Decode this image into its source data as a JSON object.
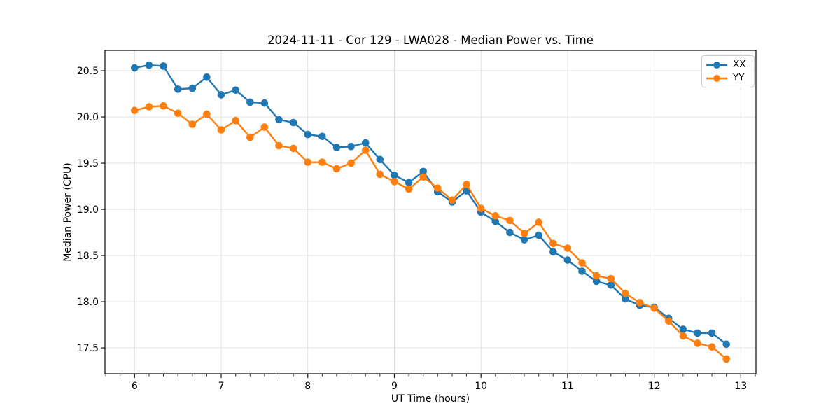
{
  "chart_data": {
    "type": "line",
    "title": "2024-11-11 - Cor 129 - LWA028 - Median Power vs. Time",
    "xlabel": "UT Time (hours)",
    "ylabel": "Median Power (CPU)",
    "xlim": [
      5.658,
      13.175
    ],
    "ylim": [
      17.22,
      20.72
    ],
    "xticks": [
      6,
      7,
      8,
      9,
      10,
      11,
      12,
      13
    ],
    "yticks": [
      17.5,
      18.0,
      18.5,
      19.0,
      19.5,
      20.0,
      20.5
    ],
    "x_minor_tick_step": 0.166667,
    "grid": true,
    "grid_color": "#e0e0e0",
    "spine_color": "#1a1a1a",
    "legend_position": "upper right",
    "x": [
      6.0,
      6.1667,
      6.3333,
      6.5,
      6.6667,
      6.8333,
      7.0,
      7.1667,
      7.3333,
      7.5,
      7.6667,
      7.8333,
      8.0,
      8.1667,
      8.3333,
      8.5,
      8.6667,
      8.8333,
      9.0,
      9.1667,
      9.3333,
      9.5,
      9.6667,
      9.8333,
      10.0,
      10.1667,
      10.3333,
      10.5,
      10.6667,
      10.8333,
      11.0,
      11.1667,
      11.3333,
      11.5,
      11.6667,
      11.8333,
      12.0,
      12.1667,
      12.3333,
      12.5,
      12.6667,
      12.8333
    ],
    "series": [
      {
        "name": "XX",
        "color": "#1f77b4",
        "values": [
          20.53,
          20.56,
          20.55,
          20.3,
          20.31,
          20.43,
          20.24,
          20.29,
          20.16,
          20.15,
          19.97,
          19.94,
          19.81,
          19.79,
          19.67,
          19.68,
          19.72,
          19.54,
          19.37,
          19.29,
          19.41,
          19.19,
          19.08,
          19.2,
          18.97,
          18.87,
          18.75,
          18.67,
          18.72,
          18.54,
          18.45,
          18.33,
          18.22,
          18.18,
          18.03,
          17.96,
          17.94,
          17.82,
          17.7,
          17.66,
          17.66,
          17.54
        ]
      },
      {
        "name": "YY",
        "color": "#ff7f0e",
        "values": [
          20.07,
          20.11,
          20.12,
          20.04,
          19.92,
          20.03,
          19.86,
          19.96,
          19.78,
          19.89,
          19.69,
          19.66,
          19.51,
          19.51,
          19.44,
          19.5,
          19.64,
          19.38,
          19.3,
          19.22,
          19.35,
          19.23,
          19.1,
          19.27,
          19.01,
          18.93,
          18.88,
          18.74,
          18.86,
          18.63,
          18.58,
          18.42,
          18.28,
          18.25,
          18.09,
          17.99,
          17.93,
          17.79,
          17.63,
          17.55,
          17.51,
          17.38
        ]
      }
    ]
  }
}
